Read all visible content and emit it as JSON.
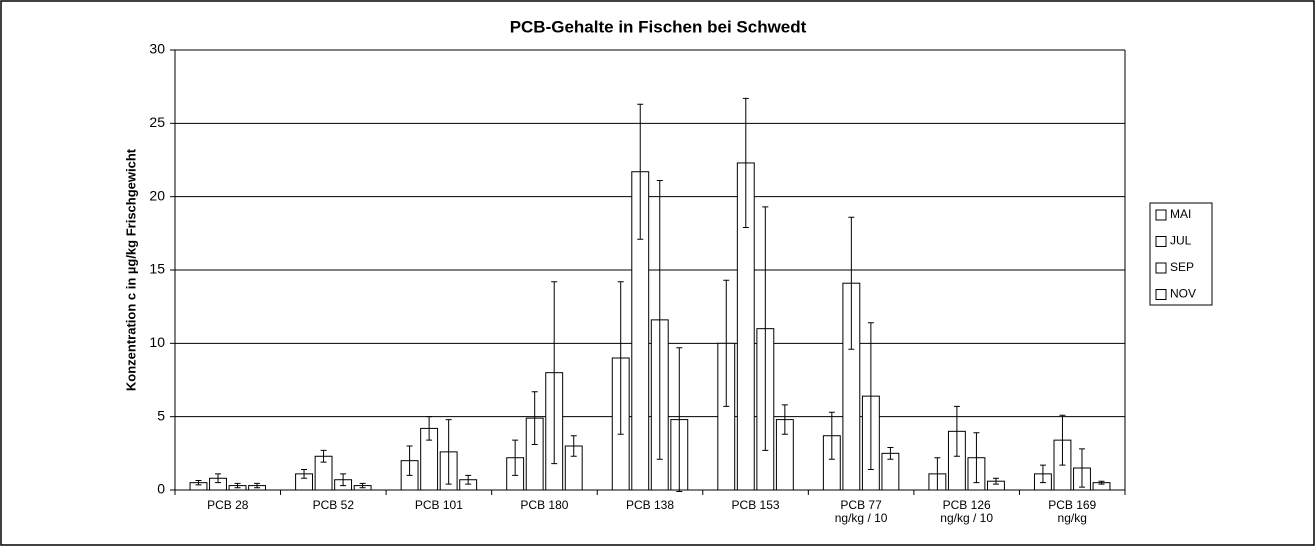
{
  "chart_data": {
    "type": "bar",
    "title": "PCB-Gehalte in Fischen bei Schwedt",
    "y_label": "Konzentration c in µg/kg Frischgewicht",
    "categories": [
      "PCB 28",
      "PCB 52",
      "PCB 101",
      "PCB 180",
      "PCB 138",
      "PCB 153",
      "PCB 77\nng/kg / 10",
      "PCB 126\nng/kg / 10",
      "PCB 169\nng/kg"
    ],
    "series": [
      {
        "name": "MAI",
        "color": "#ffffff",
        "values": [
          0.5,
          1.1,
          2.0,
          2.2,
          9.0,
          10.0,
          3.7,
          1.1,
          1.1
        ],
        "errors": [
          0.15,
          0.3,
          1.0,
          1.2,
          5.2,
          4.3,
          1.6,
          1.1,
          0.6
        ]
      },
      {
        "name": "JUL",
        "color": "#ffffff",
        "values": [
          0.8,
          2.3,
          4.2,
          4.9,
          21.7,
          22.3,
          14.1,
          4.0,
          3.4
        ],
        "errors": [
          0.3,
          0.4,
          0.8,
          1.8,
          4.6,
          4.4,
          4.5,
          1.7,
          1.7
        ]
      },
      {
        "name": "SEP",
        "color": "#ffffff",
        "values": [
          0.3,
          0.7,
          2.6,
          8.0,
          11.6,
          11.0,
          6.4,
          2.2,
          1.5
        ],
        "errors": [
          0.15,
          0.4,
          2.2,
          6.2,
          9.5,
          8.3,
          5.0,
          1.7,
          1.3
        ]
      },
      {
        "name": "NOV",
        "color": "#ffffff",
        "values": [
          0.3,
          0.3,
          0.7,
          3.0,
          4.8,
          4.8,
          2.5,
          0.6,
          0.5
        ],
        "errors": [
          0.15,
          0.15,
          0.3,
          0.7,
          4.9,
          1.0,
          0.4,
          0.2,
          0.1
        ]
      }
    ],
    "ylim": [
      0,
      30
    ],
    "yticks": [
      0,
      5,
      10,
      15,
      20,
      25,
      30
    ],
    "grid": true,
    "legend": "right"
  }
}
